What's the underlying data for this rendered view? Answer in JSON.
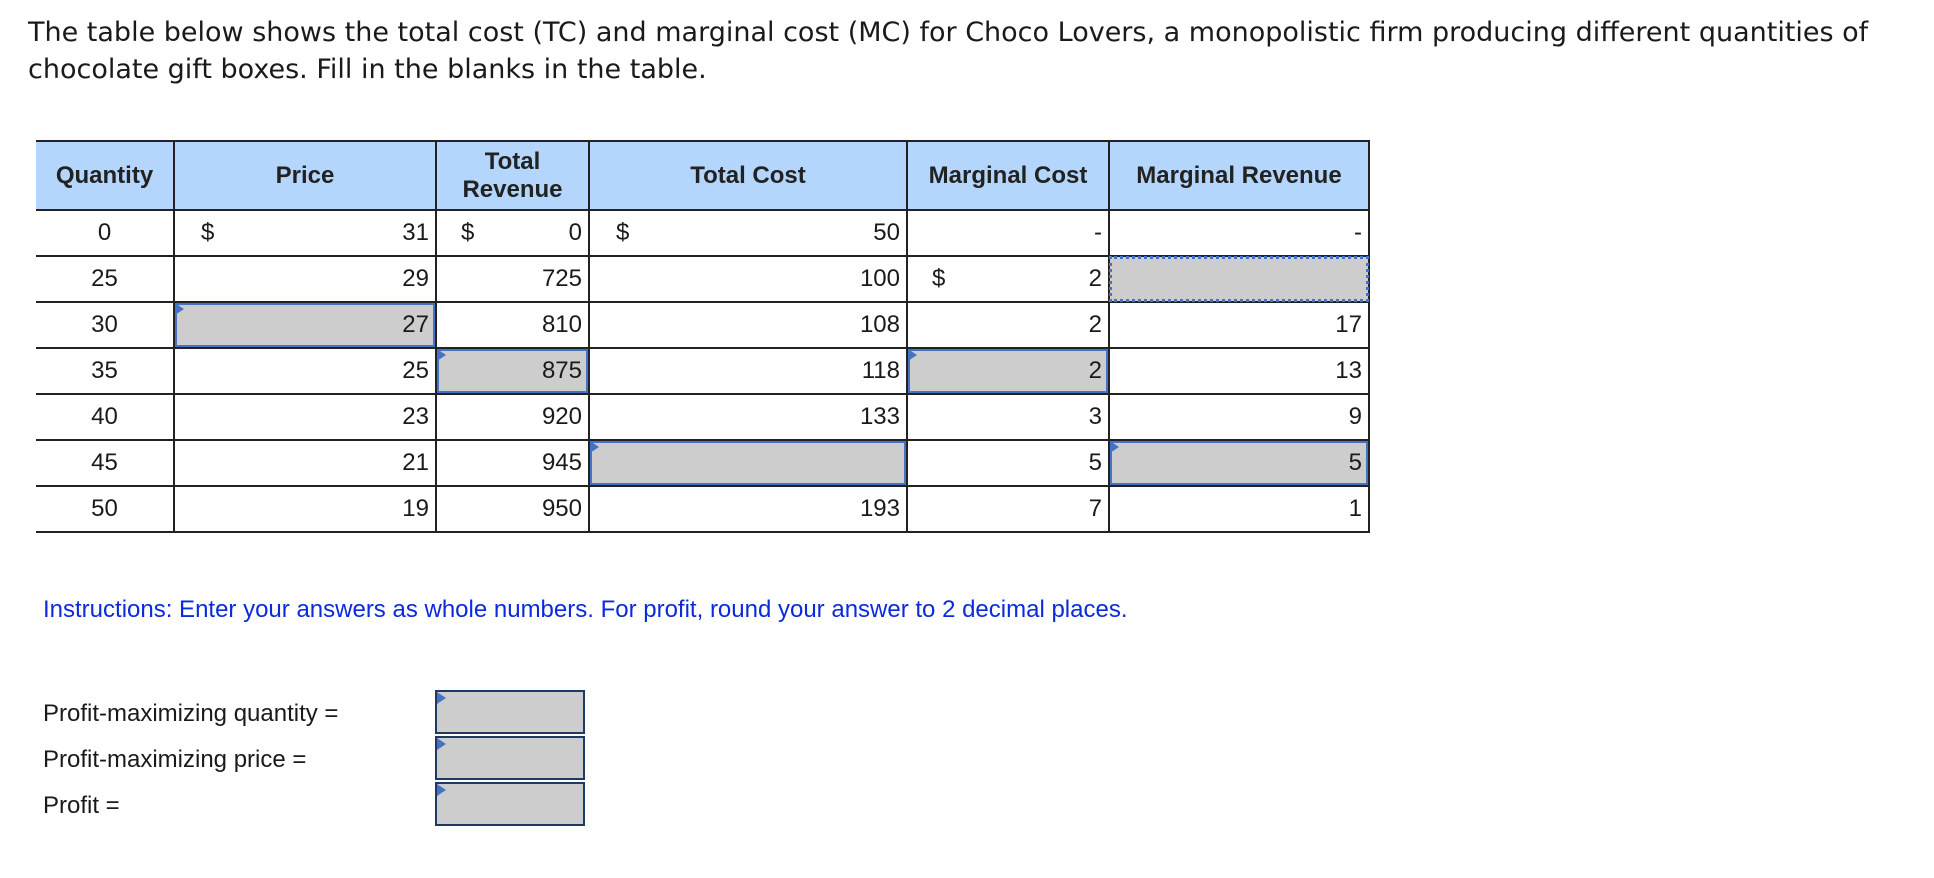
{
  "intro_text": "The table below shows the total cost (TC) and marginal cost (MC) for Choco Lovers, a monopolistic firm producing different quantities of chocolate gift boxes. Fill in the blanks in the table.",
  "table": {
    "headers": {
      "quantity": "Quantity",
      "price": "Price",
      "total_revenue": "Total Revenue",
      "total_cost": "Total Cost",
      "marginal_cost": "Marginal Cost",
      "marginal_revenue": "Marginal Revenue"
    },
    "currency_symbol": "$",
    "dash": "-",
    "rows": [
      {
        "quantity": "0",
        "price": "31",
        "total_revenue": "0",
        "total_cost": "50",
        "marginal_cost": "-",
        "marginal_revenue": "-"
      },
      {
        "quantity": "25",
        "price": "29",
        "total_revenue": "725",
        "total_cost": "100",
        "marginal_cost": "2",
        "marginal_revenue": ""
      },
      {
        "quantity": "30",
        "price": "27",
        "total_revenue": "810",
        "total_cost": "108",
        "marginal_cost": "2",
        "marginal_revenue": "17"
      },
      {
        "quantity": "35",
        "price": "25",
        "total_revenue": "875",
        "total_cost": "118",
        "marginal_cost": "2",
        "marginal_revenue": "13"
      },
      {
        "quantity": "40",
        "price": "23",
        "total_revenue": "920",
        "total_cost": "133",
        "marginal_cost": "3",
        "marginal_revenue": "9"
      },
      {
        "quantity": "45",
        "price": "21",
        "total_revenue": "945",
        "total_cost": "",
        "marginal_cost": "5",
        "marginal_revenue": "5"
      },
      {
        "quantity": "50",
        "price": "19",
        "total_revenue": "950",
        "total_cost": "193",
        "marginal_cost": "7",
        "marginal_revenue": "1"
      }
    ]
  },
  "instructions": "Instructions: Enter your answers as whole numbers. For profit, round your answer to 2 decimal places.",
  "answers": {
    "quantity_label": "Profit-maximizing quantity =",
    "price_label": "Profit-maximizing price =",
    "profit_label": "Profit ="
  },
  "colors": {
    "header_bg": "#b5d6fc",
    "blank_bg": "#cdcdcd",
    "input_marker": "#4472c4",
    "instructions_text": "#0a2bdb"
  }
}
